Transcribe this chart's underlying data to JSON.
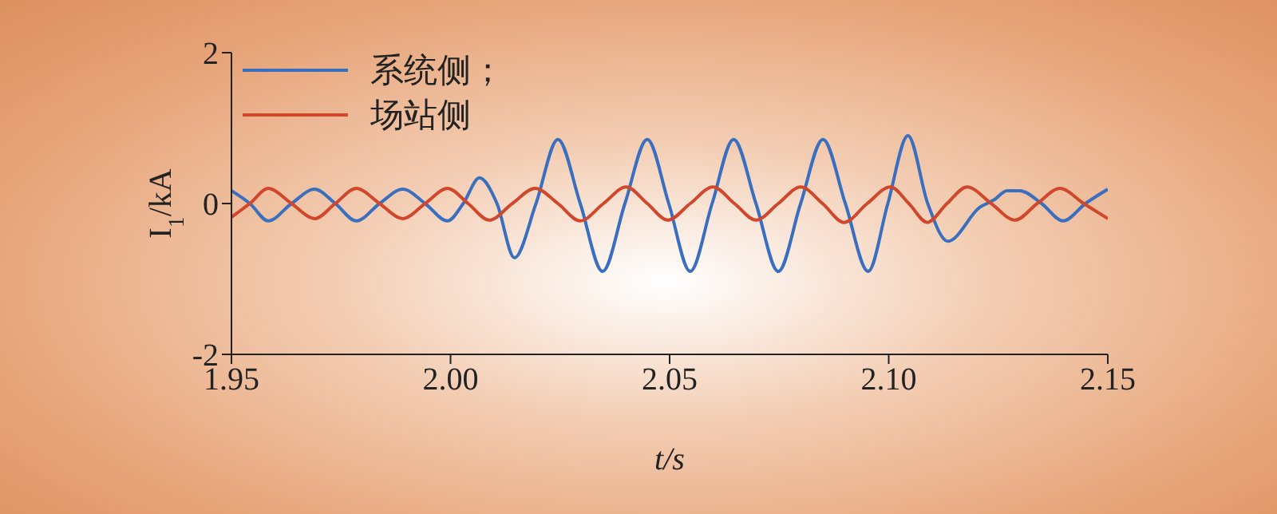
{
  "chart_data": {
    "type": "line",
    "xlabel": "t/s",
    "ylabel": "I$_{1}$/kA",
    "xlim": [
      1.95,
      2.15
    ],
    "xticks": [
      {
        "value": 1.95,
        "label": "1.95"
      },
      {
        "value": 2.0,
        "label": "2.00"
      },
      {
        "value": 2.05,
        "label": "2.05"
      },
      {
        "value": 2.1,
        "label": "2.10"
      },
      {
        "value": 2.15,
        "label": "2.15"
      }
    ],
    "ylim": [
      -2,
      2
    ],
    "yticks": [
      -2,
      0,
      2
    ],
    "grid": false,
    "legend": "top left",
    "line_style": "solid",
    "marker": "none",
    "series": [
      {
        "name": "系统侧；",
        "color": "#3a6fc0",
        "x": [
          1.95,
          1.9542,
          1.9584,
          1.9637,
          1.969,
          1.9737,
          1.9785,
          1.9838,
          1.9891,
          1.9942,
          1.9993,
          2.0029,
          2.0066,
          2.0106,
          2.0146,
          2.0195,
          2.0245,
          2.0296,
          2.0347,
          2.0398,
          2.0449,
          2.0498,
          2.0547,
          2.0597,
          2.0646,
          2.0697,
          2.0748,
          2.0799,
          2.085,
          2.0901,
          2.0953,
          2.0998,
          2.1044,
          2.1089,
          2.1135,
          2.1208,
          2.1241,
          2.127,
          2.1299,
          2.1349,
          2.1398,
          2.1449,
          2.15
        ],
        "values": [
          0.17,
          0,
          -0.23,
          0,
          0.19,
          0,
          -0.23,
          0,
          0.19,
          0,
          -0.23,
          0,
          0.34,
          0,
          -0.72,
          0,
          0.85,
          0,
          -0.9,
          0,
          0.85,
          0,
          -0.9,
          0,
          0.85,
          0,
          -0.9,
          0,
          0.85,
          0,
          -0.9,
          0,
          0.9,
          0,
          -0.5,
          -0.05,
          0.05,
          0.17,
          0.17,
          0,
          -0.23,
          0,
          0.19
        ]
      },
      {
        "name": "场站侧",
        "color": "#d0472b",
        "x": [
          1.95,
          1.9542,
          1.9584,
          1.9637,
          1.969,
          1.9737,
          1.9785,
          1.9838,
          1.9891,
          1.9942,
          1.9993,
          2.004,
          2.0088,
          2.0141,
          2.0193,
          2.0245,
          2.0296,
          2.0349,
          2.0401,
          2.0449,
          2.0496,
          2.0547,
          2.0599,
          2.0648,
          2.0697,
          2.0748,
          2.0799,
          2.0849,
          2.0898,
          2.0951,
          2.1004,
          2.1046,
          2.1088,
          2.1133,
          2.1179,
          2.1234,
          2.1288,
          2.1339,
          2.1391,
          2.1445,
          2.15
        ],
        "values": [
          -0.18,
          0,
          0.2,
          0,
          -0.2,
          0,
          0.2,
          0,
          -0.2,
          0,
          0.2,
          0,
          -0.22,
          0,
          0.2,
          0,
          -0.23,
          0,
          0.22,
          0,
          -0.22,
          0,
          0.22,
          0,
          -0.22,
          0,
          0.22,
          0,
          -0.25,
          0,
          0.22,
          0,
          -0.25,
          0,
          0.22,
          0,
          -0.22,
          0,
          0.2,
          0,
          -0.2
        ]
      }
    ]
  }
}
